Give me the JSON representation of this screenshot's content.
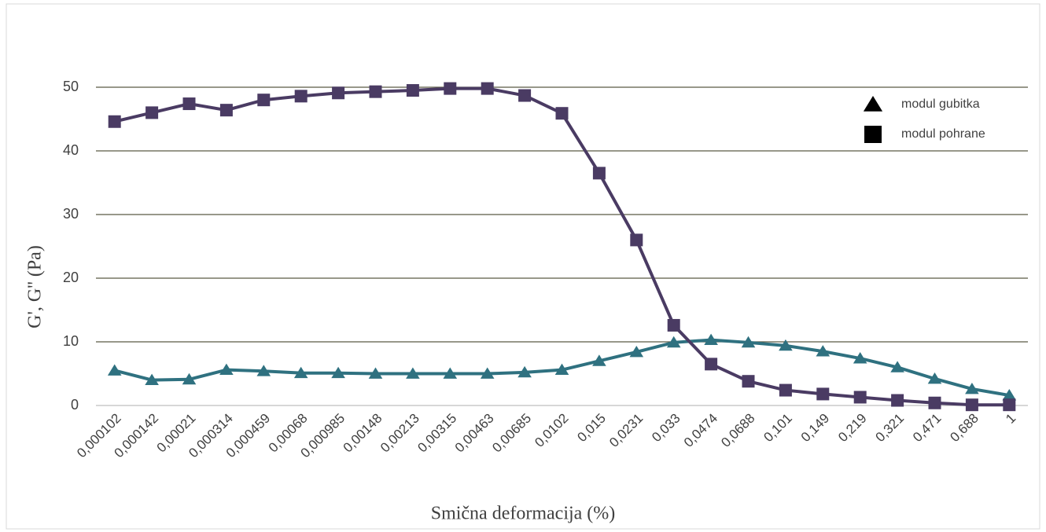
{
  "chart_data": {
    "type": "line",
    "x_label": "Smična deformacija (%)",
    "y_label": "G', G'' (Pa)",
    "categories": [
      "0,000102",
      "0,000142",
      "0,00021",
      "0,000314",
      "0,000459",
      "0,00068",
      "0,000985",
      "0,00148",
      "0,00213",
      "0,00315",
      "0,00463",
      "0,00685",
      "0,0102",
      "0,015",
      "0,0231",
      "0,033",
      "0,0474",
      "0,0688",
      "0,101",
      "0,149",
      "0,219",
      "0,321",
      "0,471",
      "0,688",
      "1"
    ],
    "series": [
      {
        "name": "modul gubitka",
        "color": "#2f7180",
        "marker": "triangle",
        "values": [
          5.5,
          4,
          4.1,
          5.6,
          5.4,
          5.1,
          5.1,
          5,
          5,
          5,
          5,
          5.2,
          5.6,
          7,
          8.4,
          9.9,
          10.3,
          9.9,
          9.4,
          8.5,
          7.4,
          6,
          4.2,
          2.6,
          1.6
        ]
      },
      {
        "name": "modul pohrane",
        "color": "#4a3b63",
        "marker": "square",
        "values": [
          44.6,
          46,
          47.4,
          46.4,
          48,
          48.6,
          49.1,
          49.3,
          49.5,
          49.8,
          49.8,
          48.7,
          45.9,
          36.5,
          26,
          12.6,
          6.5,
          3.8,
          2.4,
          1.8,
          1.3,
          0.8,
          0.4,
          0.1,
          0.1
        ]
      }
    ],
    "ylim": [
      0,
      50
    ],
    "yticks": [
      0,
      10,
      20,
      30,
      40,
      50
    ],
    "grid": true,
    "legend": "top-right"
  }
}
